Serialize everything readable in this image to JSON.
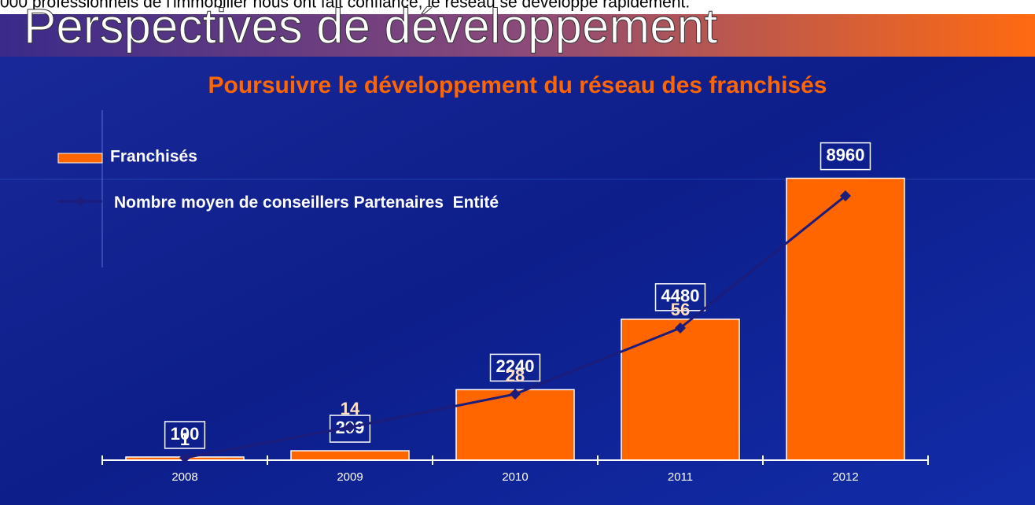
{
  "chart_data": {
    "type": "bar_line",
    "caption": "000 professionnels de l'immobilier nous ont fait confiance, le réseau se développe rapidement.",
    "title": "Perspectives de développement",
    "subtitle": "Poursuivre le développement du réseau des franchisés",
    "categories": [
      "2008",
      "2009",
      "2010",
      "2011",
      "2012"
    ],
    "series": [
      {
        "name": "Franchisés",
        "color": "#ff6600",
        "values": [
          100,
          299,
          2240,
          4480,
          8960
        ]
      },
      {
        "name": "Nombre moyen de conseillers Partenaires  Entité",
        "color": "#1c1c7a",
        "axis": "y2",
        "values": [
          1,
          14,
          28,
          56,
          112
        ],
        "value_labels": [
          "1",
          "14",
          "28",
          "56",
          null
        ]
      }
    ],
    "ylim": [
      0,
      9000
    ],
    "y2lim": [
      0,
      120
    ]
  }
}
